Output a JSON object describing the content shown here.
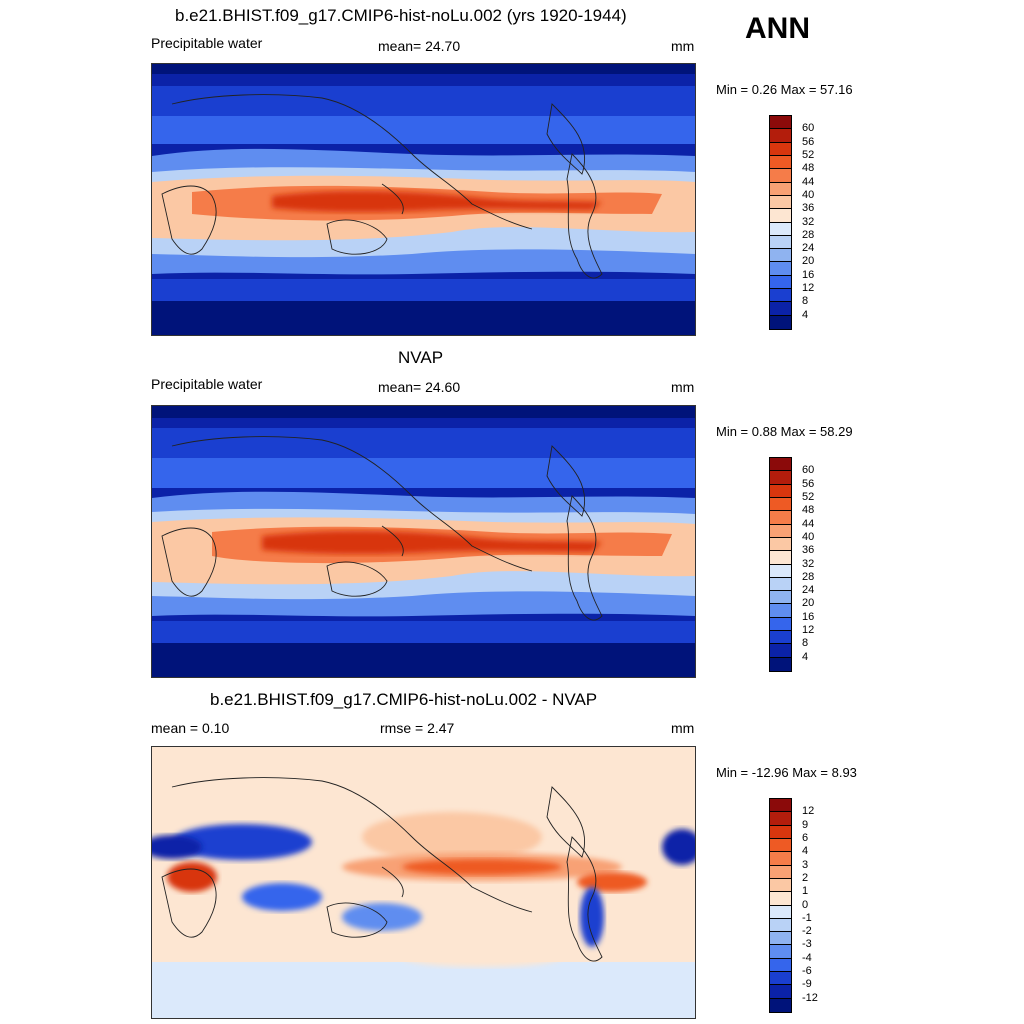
{
  "season": "ANN",
  "panels": [
    {
      "title": "b.e21.BHIST.f09_g17.CMIP6-hist-noLu.002 (yrs 1920-1944)",
      "left_label": "Precipitable water",
      "center_label": "mean=  24.70",
      "units": "mm",
      "minmax": "Min =   0.26 Max =  57.16",
      "palette": "sequential",
      "colorbar_ticks": [
        "60",
        "56",
        "52",
        "48",
        "44",
        "40",
        "36",
        "32",
        "28",
        "24",
        "20",
        "16",
        "12",
        "8",
        "4"
      ]
    },
    {
      "title": "NVAP",
      "left_label": "Precipitable water",
      "center_label": "mean=  24.60",
      "units": "mm",
      "minmax": "Min =   0.88 Max =  58.29",
      "palette": "sequential",
      "colorbar_ticks": [
        "60",
        "56",
        "52",
        "48",
        "44",
        "40",
        "36",
        "32",
        "28",
        "24",
        "20",
        "16",
        "12",
        "8",
        "4"
      ]
    },
    {
      "title": "b.e21.BHIST.f09_g17.CMIP6-hist-noLu.002 - NVAP",
      "left_label": "mean =   0.10",
      "center_label": "rmse =   2.47",
      "units": "mm",
      "minmax": "Min = -12.96 Max =   8.93",
      "palette": "diverging",
      "colorbar_ticks": [
        "12",
        "9",
        "6",
        "4",
        "3",
        "2",
        "1",
        "0",
        "-1",
        "-2",
        "-3",
        "-4",
        "-6",
        "-9",
        "-12"
      ]
    }
  ],
  "colors": {
    "sequential": [
      "#8b0a0a",
      "#b31d0c",
      "#d8360e",
      "#ee5a24",
      "#f57c49",
      "#f8a174",
      "#fbc8a4",
      "#fde6d2",
      "#dbe9fb",
      "#b9d2f6",
      "#8fb3f0",
      "#5f8df0",
      "#3565ec",
      "#1a3fd0",
      "#0b22a8",
      "#00137a"
    ],
    "diverging": [
      "#8b0a0a",
      "#b31d0c",
      "#d8360e",
      "#ee5a24",
      "#f57c49",
      "#f8a174",
      "#fbc8a4",
      "#fde6d2",
      "#dbe9fb",
      "#b9d2f6",
      "#8fb3f0",
      "#5f8df0",
      "#3565ec",
      "#1a3fd0",
      "#0b22a8",
      "#00137a"
    ]
  }
}
